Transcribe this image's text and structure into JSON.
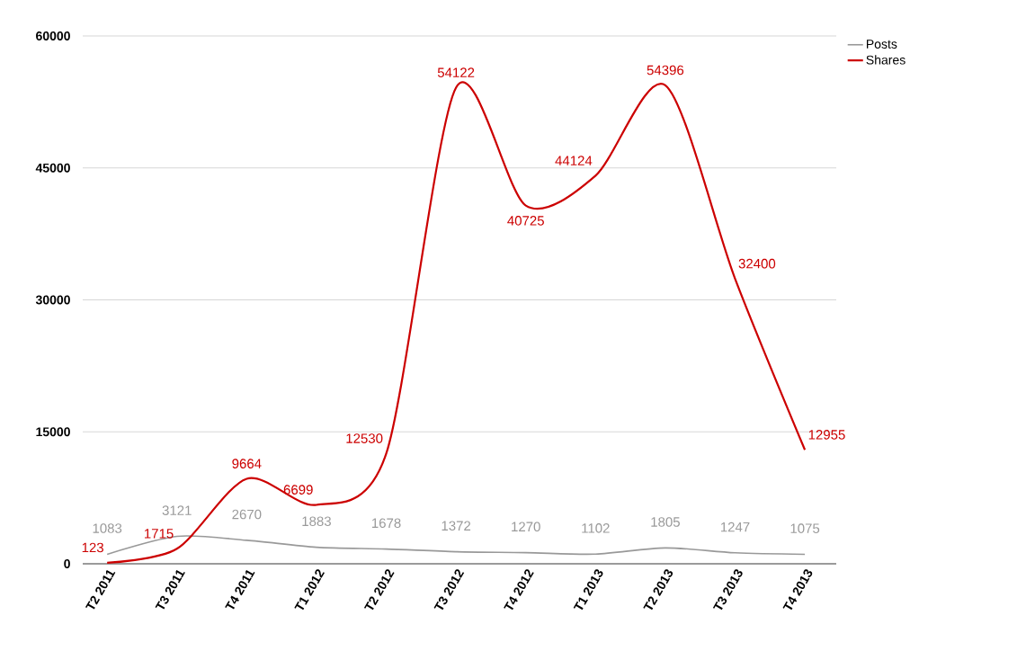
{
  "chart_data": {
    "type": "line",
    "categories": [
      "T2 2011",
      "T3 2011",
      "T4 2011",
      "T1 2012",
      "T2 2012",
      "T3 2012",
      "T4 2012",
      "T1 2013",
      "T2 2013",
      "T3 2013",
      "T4 2013"
    ],
    "series": [
      {
        "name": "Posts",
        "color": "#999999",
        "values": [
          1083,
          3121,
          2670,
          1883,
          1678,
          1372,
          1270,
          1102,
          1805,
          1247,
          1075
        ]
      },
      {
        "name": "Shares",
        "color": "#cc0000",
        "values": [
          123,
          1715,
          9664,
          6699,
          12530,
          54122,
          40725,
          44124,
          54396,
          32400,
          12955
        ]
      }
    ],
    "ylim": [
      0,
      60000
    ],
    "yticks": [
      0,
      15000,
      30000,
      45000,
      60000
    ],
    "grid": "y",
    "legend": "top right",
    "data_labels": true,
    "marker": "none",
    "line_style": "solid"
  }
}
